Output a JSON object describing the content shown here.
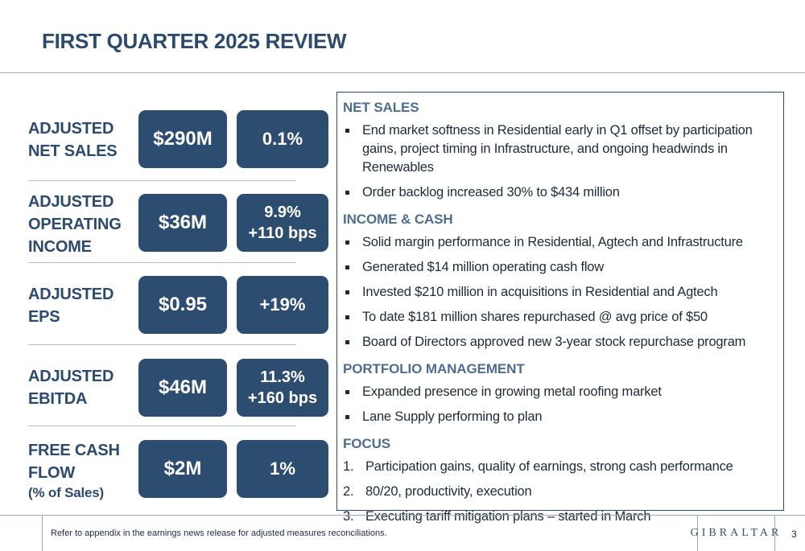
{
  "title": "FIRST QUARTER 2025 REVIEW",
  "metrics": [
    {
      "label_lines": [
        "ADJUSTED",
        "NET SALES"
      ],
      "value": "$290M",
      "change": [
        "0.1%"
      ]
    },
    {
      "label_lines": [
        "ADJUSTED",
        "OPERATING",
        "INCOME"
      ],
      "value": "$36M",
      "change": [
        "9.9%",
        "+110 bps"
      ]
    },
    {
      "label_lines": [
        "ADJUSTED",
        "EPS"
      ],
      "value": "$0.95",
      "change": [
        "+19%"
      ]
    },
    {
      "label_lines": [
        "ADJUSTED",
        "EBITDA"
      ],
      "value": "$46M",
      "change": [
        "11.3%",
        "+160 bps"
      ]
    },
    {
      "label_lines": [
        "FREE CASH",
        "FLOW"
      ],
      "sub_label": "(% of Sales)",
      "value": "$2M",
      "change": [
        "1%"
      ]
    }
  ],
  "sections": {
    "net_sales": {
      "heading": "NET SALES",
      "bullets": [
        "End market softness in Residential early in Q1 offset by participation gains, project timing in Infrastructure, and ongoing headwinds in Renewables",
        "Order backlog increased 30% to $434 million"
      ]
    },
    "income_cash": {
      "heading": "INCOME & CASH",
      "bullets": [
        "Solid margin performance in Residential, Agtech and Infrastructure",
        "Generated $14 million operating cash flow",
        "Invested $210 million in acquisitions in Residential and Agtech",
        "To date $181 million shares repurchased @ avg price of $50",
        "Board of Directors approved new 3-year stock repurchase program"
      ]
    },
    "portfolio": {
      "heading": "PORTFOLIO MANAGEMENT",
      "bullets": [
        "Expanded presence in growing metal roofing market",
        "Lane Supply performing to plan"
      ]
    },
    "focus": {
      "heading": "FOCUS",
      "items": [
        {
          "num": "1.",
          "text": "Participation gains, quality of earnings, strong cash performance"
        },
        {
          "num": "2.",
          "text": "80/20, productivity, execution"
        },
        {
          "num": "3.",
          "text": "Executing tariff mitigation plans – started in March"
        }
      ]
    }
  },
  "footer": {
    "note": "Refer to appendix in the earnings news release for adjusted measures reconciliations.",
    "logo": "GIBRALTAR",
    "page": "3"
  },
  "colors": {
    "accent": "#2d4d70",
    "heading": "#2c4a6b",
    "subheading": "#4e6d8c"
  }
}
